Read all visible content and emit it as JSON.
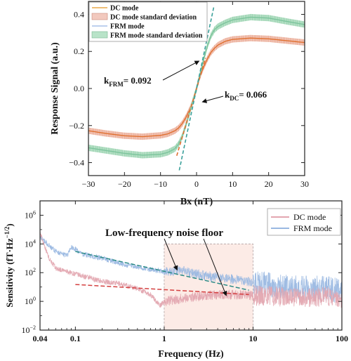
{
  "chart_data": [
    {
      "type": "line",
      "xlabel": "Bx (nT)",
      "ylabel": "Response Signal (a.u.)",
      "xlim": [
        -30,
        30
      ],
      "ylim": [
        -0.47,
        0.47
      ],
      "xticks": [
        -30,
        -20,
        -10,
        0,
        10,
        20,
        30
      ],
      "yticks": [
        -0.4,
        -0.2,
        0.0,
        0.2,
        0.4
      ],
      "xtick_labels": [
        "−30",
        "−20",
        "−10",
        "0",
        "10",
        "20",
        "30"
      ],
      "ytick_labels": [
        "−0.4",
        "−0.2",
        "0.0",
        "0.2",
        "0.4"
      ],
      "grid": false,
      "legend_position": "top-left",
      "legend": [
        {
          "label": "DC mode",
          "style": "line",
          "color": "#e8a848"
        },
        {
          "label": "DC mode standard deviation",
          "style": "band",
          "color": "#f2c9be"
        },
        {
          "label": "FRM mode",
          "style": "line",
          "color": "#a8c0e8"
        },
        {
          "label": "FRM mode standard deviation",
          "style": "band",
          "color": "#b8e3c8"
        }
      ],
      "series": [
        {
          "name": "DC mode",
          "x": [
            -30,
            -25,
            -20,
            -15,
            -10,
            -8,
            -6,
            -5,
            -4,
            -3,
            -2,
            -1,
            0,
            1,
            2,
            3,
            4,
            5,
            6,
            8,
            10,
            15,
            20,
            25,
            30
          ],
          "y": [
            -0.228,
            -0.243,
            -0.255,
            -0.26,
            -0.253,
            -0.245,
            -0.228,
            -0.213,
            -0.19,
            -0.158,
            -0.118,
            -0.07,
            0.0,
            0.07,
            0.118,
            0.16,
            0.195,
            0.218,
            0.235,
            0.255,
            0.265,
            0.272,
            0.268,
            0.258,
            0.248
          ],
          "band_color": "#f0b8a6",
          "line_color": "#e07030"
        },
        {
          "name": "FRM mode",
          "x": [
            -30,
            -25,
            -20,
            -15,
            -10,
            -8,
            -6,
            -5,
            -4,
            -3,
            -2,
            -1,
            0,
            1,
            2,
            3,
            4,
            5,
            6,
            8,
            10,
            15,
            20,
            25,
            30
          ],
          "y": [
            -0.32,
            -0.335,
            -0.35,
            -0.36,
            -0.355,
            -0.345,
            -0.325,
            -0.3,
            -0.26,
            -0.2,
            -0.135,
            -0.065,
            0.0,
            0.08,
            0.16,
            0.23,
            0.285,
            0.318,
            0.335,
            0.355,
            0.37,
            0.385,
            0.38,
            0.362,
            0.345
          ],
          "band_color": "#a9dcbc",
          "line_color": "#7cc49c"
        }
      ],
      "fit_lines": [
        {
          "name": "kDC",
          "slope": 0.066,
          "x_range": [
            -5.5,
            2.5
          ],
          "color": "#e07030"
        },
        {
          "name": "kFRM",
          "slope": 0.092,
          "x_range": [
            -4.8,
            4.8
          ],
          "color": "#3aa09a"
        }
      ],
      "annotations": [
        {
          "label_main": "k",
          "label_sub": "FRM",
          "label_value": "= 0.092",
          "arrow_to": [
            1.5,
            0.16
          ]
        },
        {
          "label_main": "k",
          "label_sub": "DC",
          "label_value": "= 0.066",
          "arrow_to": [
            0.8,
            -0.065
          ]
        }
      ]
    },
    {
      "type": "line",
      "xlabel": "Frequency (Hz)",
      "ylabel_main": "Sensitivity (fT·Hz",
      "ylabel_exp": "−1/2",
      "ylabel_close": ")",
      "xscale": "log",
      "yscale": "log",
      "xlim": [
        0.04,
        100
      ],
      "ylim": [
        0.01,
        10000000
      ],
      "xticks": [
        0.04,
        0.1,
        1,
        10,
        100
      ],
      "xtick_labels": [
        "0.04",
        "0.1",
        "1",
        "10",
        "100"
      ],
      "ytick_exponents": [
        -2,
        0,
        2,
        4,
        6
      ],
      "ytick_base": "10",
      "ytick_exp_labels": [
        "−2",
        "0",
        "2",
        "4",
        "6"
      ],
      "grid": false,
      "legend_position": "top-right",
      "legend": [
        {
          "label": "DC mode",
          "color": "#e3a6b0"
        },
        {
          "label": "FRM mode",
          "color": "#9ab8e2"
        }
      ],
      "series": [
        {
          "name": "DC mode",
          "color": "#e3a6b0",
          "x": [
            0.04,
            0.05,
            0.06,
            0.08,
            0.1,
            0.15,
            0.2,
            0.3,
            0.5,
            0.7,
            0.9,
            1,
            2,
            3,
            5,
            7,
            10,
            20,
            50,
            100
          ],
          "y": [
            60000,
            1200,
            200,
            120,
            80,
            40,
            25,
            18,
            8,
            3,
            0.5,
            1,
            2,
            2.5,
            3,
            2.8,
            2.6,
            2.2,
            2.0,
            1.8
          ]
        },
        {
          "name": "FRM mode",
          "color": "#9ab8e2",
          "x": [
            0.04,
            0.06,
            0.08,
            0.09,
            0.12,
            0.2,
            0.4,
            0.6,
            1,
            1.5,
            2,
            3,
            5,
            7,
            10,
            20,
            50,
            100
          ],
          "y": [
            30000,
            3000,
            1500,
            6000,
            2000,
            1000,
            300,
            200,
            120,
            150,
            90,
            60,
            40,
            30,
            20,
            10,
            8,
            6
          ]
        }
      ],
      "fit_lines": [
        {
          "name": "FRM trend",
          "x": [
            0.1,
            9
          ],
          "y": [
            3000,
            6
          ],
          "color": "#2a8a86"
        },
        {
          "name": "DC trend",
          "x": [
            0.1,
            9
          ],
          "y": [
            15,
            3
          ],
          "color": "#d44040"
        }
      ],
      "highlight_region": {
        "x": [
          1,
          10
        ],
        "y": [
          0.01,
          10000
        ]
      },
      "annotation": {
        "text": "Low-frequency noise floor",
        "arrows_to": [
          [
            1.4,
            150
          ],
          [
            5,
            2.5
          ]
        ]
      }
    }
  ]
}
